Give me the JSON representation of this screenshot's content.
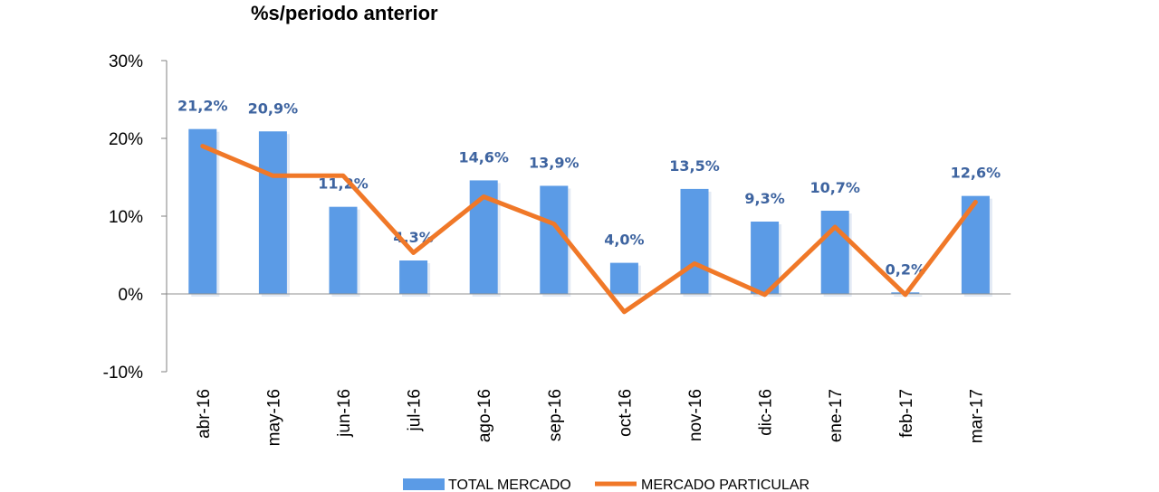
{
  "chart_data": {
    "type": "bar+line",
    "title": "%s/periodo anterior",
    "categories": [
      "abr-16",
      "may-16",
      "jun-16",
      "jul-16",
      "ago-16",
      "sep-16",
      "oct-16",
      "nov-16",
      "dic-16",
      "ene-17",
      "feb-17",
      "mar-17"
    ],
    "y_ticks": [
      "30%",
      "20%",
      "10%",
      "0%",
      "-10%"
    ],
    "ylim": [
      -10,
      30
    ],
    "series": [
      {
        "name": "TOTAL MERCADO",
        "kind": "bar",
        "color": "#5B9BE6",
        "values": [
          21.2,
          20.9,
          11.2,
          4.3,
          14.6,
          13.9,
          4.0,
          13.5,
          9.3,
          10.7,
          0.2,
          12.6
        ],
        "labels": [
          "21,2%",
          "20,9%",
          "11,2%",
          "4,3%",
          "14,6%",
          "13,9%",
          "4,0%",
          "13,5%",
          "9,3%",
          "10,7%",
          "0,2%",
          "12,6%"
        ]
      },
      {
        "name": "MERCADO PARTICULAR",
        "kind": "line",
        "color": "#F07828",
        "values": [
          19.0,
          15.2,
          15.2,
          5.3,
          12.5,
          9.0,
          -2.3,
          3.9,
          -0.1,
          8.6,
          -0.1,
          11.8
        ]
      }
    ],
    "negative_tick_color": "#E02020",
    "legend_position": "bottom"
  }
}
